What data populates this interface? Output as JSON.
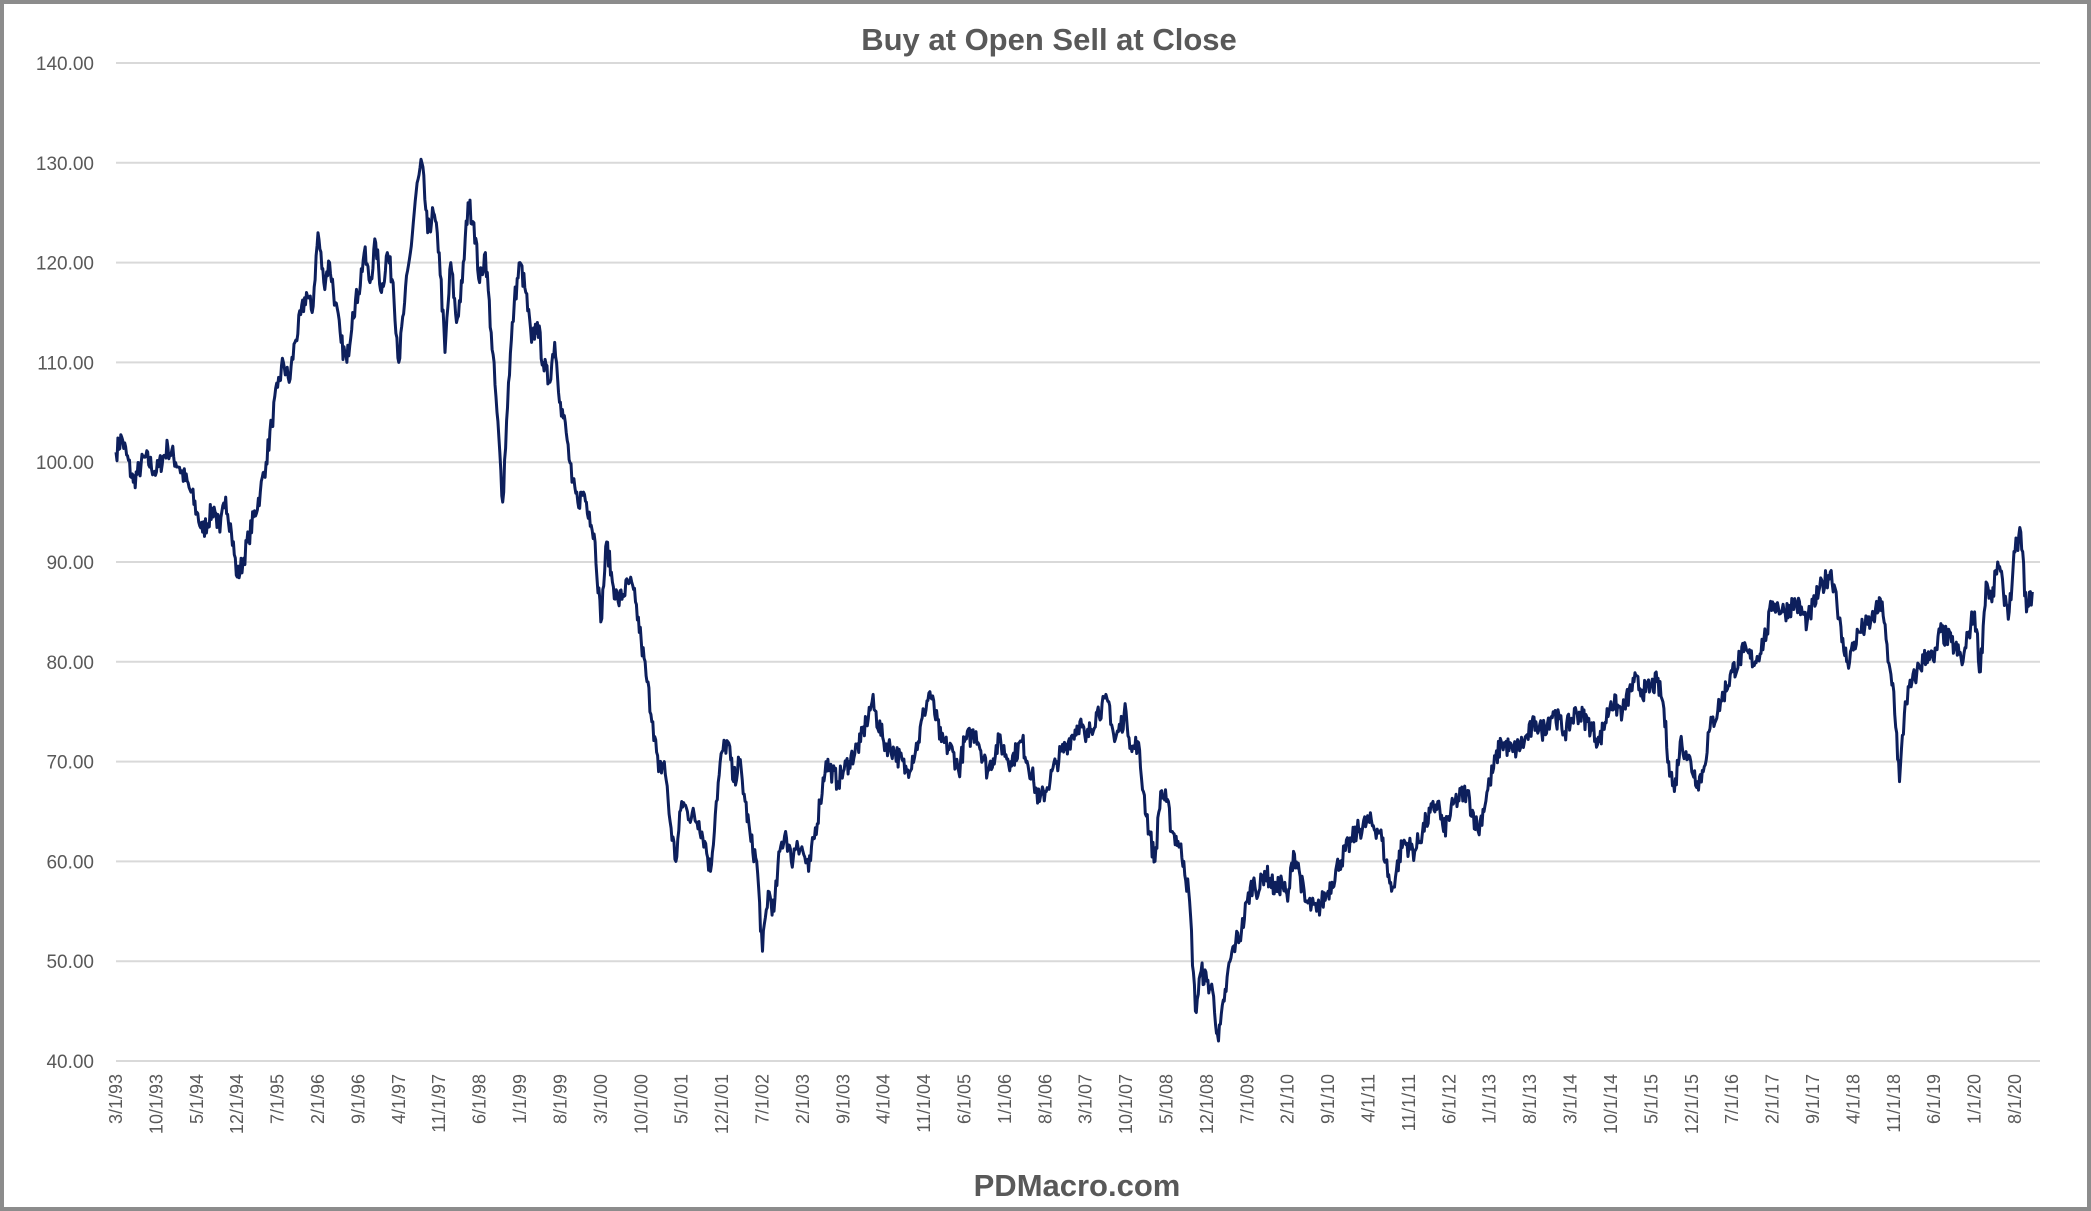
{
  "chart_data": {
    "type": "line",
    "title": "Buy at Open Sell at Close",
    "watermark": "PDMacro.com",
    "xlabel": "",
    "ylabel": "",
    "ylim": [
      40,
      140
    ],
    "yticks": [
      "40.00",
      "50.00",
      "60.00",
      "70.00",
      "80.00",
      "90.00",
      "100.00",
      "110.00",
      "120.00",
      "130.00",
      "140.00"
    ],
    "grid": true,
    "legend": "none",
    "x_start": "1993-03",
    "xticks": [
      "3/1/93",
      "10/1/93",
      "5/1/94",
      "12/1/94",
      "7/1/95",
      "2/1/96",
      "9/1/96",
      "4/1/97",
      "11/1/97",
      "6/1/98",
      "1/1/99",
      "8/1/99",
      "3/1/00",
      "10/1/00",
      "5/1/01",
      "12/1/01",
      "7/1/02",
      "2/1/03",
      "9/1/03",
      "4/1/04",
      "11/1/04",
      "6/1/05",
      "1/1/06",
      "8/1/06",
      "3/1/07",
      "10/1/07",
      "5/1/08",
      "12/1/08",
      "7/1/09",
      "2/1/10",
      "9/1/10",
      "4/1/11",
      "11/1/11",
      "6/1/12",
      "1/1/13",
      "8/1/13",
      "3/1/14",
      "10/1/14",
      "5/1/15",
      "12/1/15",
      "7/1/16",
      "2/1/17",
      "9/1/17",
      "4/1/18",
      "11/1/18",
      "6/1/19",
      "1/1/20",
      "8/1/20"
    ],
    "line_color": "#0d1f5c",
    "series": [
      {
        "name": "Buy at Open Sell at Close",
        "points": [
          [
            "1993-03",
            101
          ],
          [
            "1993-04",
            102.5
          ],
          [
            "1993-06",
            98
          ],
          [
            "1993-08",
            100.5
          ],
          [
            "1993-10",
            99
          ],
          [
            "1993-12",
            101.5
          ],
          [
            "1994-02",
            99.5
          ],
          [
            "1994-04",
            97
          ],
          [
            "1994-05",
            95
          ],
          [
            "1994-06",
            93
          ],
          [
            "1994-08",
            95.5
          ],
          [
            "1994-09",
            93
          ],
          [
            "1994-10",
            96.5
          ],
          [
            "1994-11",
            93
          ],
          [
            "1994-12",
            88.5
          ],
          [
            "1995-01",
            90
          ],
          [
            "1995-02",
            92.5
          ],
          [
            "1995-04",
            97
          ],
          [
            "1995-05",
            100
          ],
          [
            "1995-06",
            104
          ],
          [
            "1995-07",
            107.5
          ],
          [
            "1995-08",
            110
          ],
          [
            "1995-09",
            108
          ],
          [
            "1995-10",
            112
          ],
          [
            "1995-12",
            117
          ],
          [
            "1996-01",
            115
          ],
          [
            "1996-02",
            123
          ],
          [
            "1996-03",
            118
          ],
          [
            "1996-04",
            120
          ],
          [
            "1996-05",
            116
          ],
          [
            "1996-06",
            112
          ],
          [
            "1996-07",
            110
          ],
          [
            "1996-08",
            115
          ],
          [
            "1996-09",
            117
          ],
          [
            "1996-10",
            121
          ],
          [
            "1996-11",
            118
          ],
          [
            "1996-12",
            122
          ],
          [
            "1997-01",
            117
          ],
          [
            "1997-02",
            121
          ],
          [
            "1997-03",
            118
          ],
          [
            "1997-04",
            110
          ],
          [
            "1997-05",
            116
          ],
          [
            "1997-06",
            121
          ],
          [
            "1997-07",
            127
          ],
          [
            "1997-08",
            130
          ],
          [
            "1997-09",
            123
          ],
          [
            "1997-10",
            125
          ],
          [
            "1997-11",
            121
          ],
          [
            "1997-12",
            111
          ],
          [
            "1998-01",
            120
          ],
          [
            "1998-02",
            114
          ],
          [
            "1998-03",
            118
          ],
          [
            "1998-04",
            126
          ],
          [
            "1998-05",
            124
          ],
          [
            "1998-06",
            118
          ],
          [
            "1998-07",
            121
          ],
          [
            "1998-08",
            113
          ],
          [
            "1998-09",
            105
          ],
          [
            "1998-10",
            96
          ],
          [
            "1998-11",
            108
          ],
          [
            "1998-12",
            116
          ],
          [
            "1999-01",
            120
          ],
          [
            "1999-02",
            117
          ],
          [
            "1999-03",
            112
          ],
          [
            "1999-04",
            114
          ],
          [
            "1999-05",
            110
          ],
          [
            "1999-06",
            108
          ],
          [
            "1999-07",
            112
          ],
          [
            "1999-08",
            106
          ],
          [
            "1999-09",
            103
          ],
          [
            "1999-10",
            98
          ],
          [
            "1999-11",
            96
          ],
          [
            "1999-12",
            97
          ],
          [
            "2000-01",
            95
          ],
          [
            "2000-02",
            92
          ],
          [
            "2000-03",
            84
          ],
          [
            "2000-04",
            92
          ],
          [
            "2000-05",
            88
          ],
          [
            "2000-06",
            86
          ],
          [
            "2000-08",
            88
          ],
          [
            "2000-09",
            86
          ],
          [
            "2000-10",
            82
          ],
          [
            "2000-11",
            78
          ],
          [
            "2000-12",
            74
          ],
          [
            "2001-01",
            69
          ],
          [
            "2001-02",
            70
          ],
          [
            "2001-03",
            64
          ],
          [
            "2001-04",
            60
          ],
          [
            "2001-05",
            66
          ],
          [
            "2001-06",
            65
          ],
          [
            "2001-08",
            64
          ],
          [
            "2001-09",
            62
          ],
          [
            "2001-10",
            59
          ],
          [
            "2001-11",
            66
          ],
          [
            "2001-12",
            71
          ],
          [
            "2002-01",
            72
          ],
          [
            "2002-02",
            68
          ],
          [
            "2002-03",
            70
          ],
          [
            "2002-04",
            66
          ],
          [
            "2002-05",
            62
          ],
          [
            "2002-06",
            60
          ],
          [
            "2002-07",
            51
          ],
          [
            "2002-08",
            57
          ],
          [
            "2002-09",
            55
          ],
          [
            "2002-10",
            61
          ],
          [
            "2002-11",
            63
          ],
          [
            "2002-12",
            60
          ],
          [
            "2003-01",
            62
          ],
          [
            "2003-02",
            61
          ],
          [
            "2003-03",
            59
          ],
          [
            "2003-05",
            66
          ],
          [
            "2003-06",
            70
          ],
          [
            "2003-08",
            68
          ],
          [
            "2003-09",
            69
          ],
          [
            "2003-10",
            70
          ],
          [
            "2003-12",
            72
          ],
          [
            "2004-01",
            74
          ],
          [
            "2004-02",
            76
          ],
          [
            "2004-04",
            72
          ],
          [
            "2004-06",
            71
          ],
          [
            "2004-08",
            69
          ],
          [
            "2004-10",
            72
          ],
          [
            "2004-11",
            75
          ],
          [
            "2004-12",
            77
          ],
          [
            "2005-02",
            72
          ],
          [
            "2005-04",
            71
          ],
          [
            "2005-05",
            69
          ],
          [
            "2005-06",
            72
          ],
          [
            "2005-08",
            73
          ],
          [
            "2005-10",
            69
          ],
          [
            "2005-12",
            72
          ],
          [
            "2006-02",
            70
          ],
          [
            "2006-04",
            72
          ],
          [
            "2006-06",
            68
          ],
          [
            "2006-07",
            66
          ],
          [
            "2006-08",
            67
          ],
          [
            "2006-10",
            70
          ],
          [
            "2006-12",
            72
          ],
          [
            "2007-02",
            74
          ],
          [
            "2007-03",
            72
          ],
          [
            "2007-05",
            75
          ],
          [
            "2007-07",
            76
          ],
          [
            "2007-08",
            72
          ],
          [
            "2007-10",
            75
          ],
          [
            "2007-11",
            71
          ],
          [
            "2007-12",
            72
          ],
          [
            "2008-01",
            67
          ],
          [
            "2008-02",
            63
          ],
          [
            "2008-03",
            60
          ],
          [
            "2008-04",
            67
          ],
          [
            "2008-05",
            66
          ],
          [
            "2008-06",
            63
          ],
          [
            "2008-07",
            62
          ],
          [
            "2008-08",
            60
          ],
          [
            "2008-09",
            56
          ],
          [
            "2008-10",
            45
          ],
          [
            "2008-11",
            49
          ],
          [
            "2008-12",
            48
          ],
          [
            "2009-01",
            47
          ],
          [
            "2009-02",
            42
          ],
          [
            "2009-03",
            46
          ],
          [
            "2009-04",
            50
          ],
          [
            "2009-05",
            52
          ],
          [
            "2009-06",
            53
          ],
          [
            "2009-07",
            56
          ],
          [
            "2009-08",
            58
          ],
          [
            "2009-09",
            57
          ],
          [
            "2009-10",
            59
          ],
          [
            "2009-12",
            57
          ],
          [
            "2010-01",
            58
          ],
          [
            "2010-02",
            56
          ],
          [
            "2010-03",
            61
          ],
          [
            "2010-04",
            59
          ],
          [
            "2010-05",
            56
          ],
          [
            "2010-07",
            55
          ],
          [
            "2010-09",
            57
          ],
          [
            "2010-11",
            60
          ],
          [
            "2011-01",
            62
          ],
          [
            "2011-02",
            63
          ],
          [
            "2011-04",
            64
          ],
          [
            "2011-06",
            63
          ],
          [
            "2011-07",
            60
          ],
          [
            "2011-08",
            57
          ],
          [
            "2011-10",
            62
          ],
          [
            "2011-12",
            61
          ],
          [
            "2012-02",
            64
          ],
          [
            "2012-04",
            66
          ],
          [
            "2012-05",
            63
          ],
          [
            "2012-07",
            66
          ],
          [
            "2012-09",
            67
          ],
          [
            "2012-11",
            63
          ],
          [
            "2013-01",
            68
          ],
          [
            "2013-03",
            72
          ],
          [
            "2013-05",
            71
          ],
          [
            "2013-07",
            72
          ],
          [
            "2013-09",
            74
          ],
          [
            "2013-10",
            73
          ],
          [
            "2013-12",
            75
          ],
          [
            "2014-02",
            73
          ],
          [
            "2014-04",
            75
          ],
          [
            "2014-06",
            74
          ],
          [
            "2014-08",
            72
          ],
          [
            "2014-10",
            76
          ],
          [
            "2014-12",
            75
          ],
          [
            "2015-02",
            78
          ],
          [
            "2015-04",
            77
          ],
          [
            "2015-06",
            78
          ],
          [
            "2015-07",
            76
          ],
          [
            "2015-08",
            70
          ],
          [
            "2015-09",
            67
          ],
          [
            "2015-10",
            72
          ],
          [
            "2015-11",
            71
          ],
          [
            "2016-01",
            68
          ],
          [
            "2016-02",
            69
          ],
          [
            "2016-03",
            73
          ],
          [
            "2016-05",
            76
          ],
          [
            "2016-07",
            79
          ],
          [
            "2016-09",
            81
          ],
          [
            "2016-11",
            80
          ],
          [
            "2017-01",
            83
          ],
          [
            "2017-02",
            86
          ],
          [
            "2017-04",
            85
          ],
          [
            "2017-06",
            86
          ],
          [
            "2017-08",
            84
          ],
          [
            "2017-10",
            87
          ],
          [
            "2017-12",
            89
          ],
          [
            "2018-01",
            87
          ],
          [
            "2018-02",
            82
          ],
          [
            "2018-03",
            80
          ],
          [
            "2018-05",
            83
          ],
          [
            "2018-07",
            84
          ],
          [
            "2018-09",
            86
          ],
          [
            "2018-10",
            80
          ],
          [
            "2018-11",
            77
          ],
          [
            "2018-12",
            68
          ],
          [
            "2019-01",
            76
          ],
          [
            "2019-03",
            79
          ],
          [
            "2019-05",
            81
          ],
          [
            "2019-06",
            80
          ],
          [
            "2019-07",
            83
          ],
          [
            "2019-09",
            82
          ],
          [
            "2019-11",
            80
          ],
          [
            "2019-12",
            83
          ],
          [
            "2020-01",
            85
          ],
          [
            "2020-02",
            79
          ],
          [
            "2020-03",
            88
          ],
          [
            "2020-04",
            86
          ],
          [
            "2020-05",
            90
          ],
          [
            "2020-06",
            87
          ],
          [
            "2020-07",
            85
          ],
          [
            "2020-08",
            91
          ],
          [
            "2020-09",
            93
          ],
          [
            "2020-10",
            85
          ],
          [
            "2020-11",
            87
          ]
        ]
      }
    ]
  }
}
